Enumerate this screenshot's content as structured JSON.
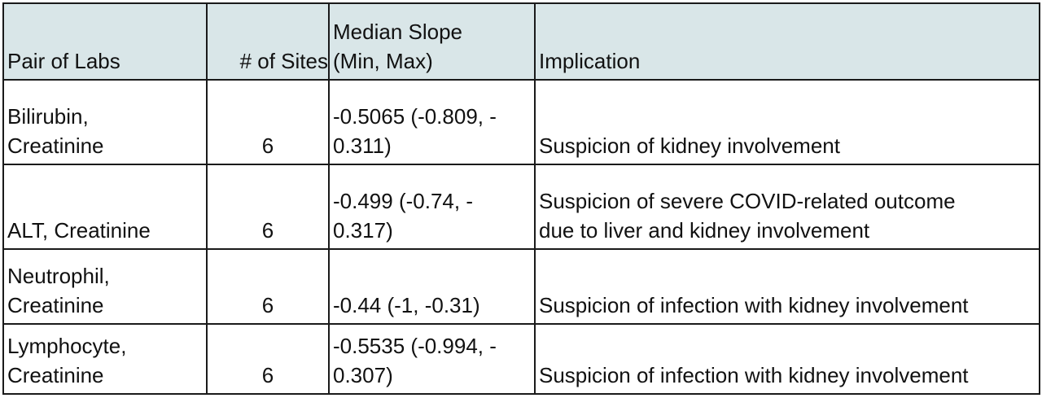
{
  "table": {
    "headers": {
      "pair": "Pair of Labs",
      "sites": "# of Sites",
      "slope": "Median Slope\n(Min, Max)",
      "implication": "Implication"
    },
    "rows": [
      {
        "pair": "Bilirubin,\nCreatinine",
        "sites": "6",
        "slope": "-0.5065 (-0.809, -\n0.311)",
        "implication": "Suspicion of kidney involvement"
      },
      {
        "pair": "ALT, Creatinine",
        "sites": "6",
        "slope": "-0.499 (-0.74, -\n0.317)",
        "implication": "Suspicion of severe COVID-related outcome\ndue to liver and kidney involvement"
      },
      {
        "pair": "Neutrophil,\nCreatinine",
        "sites": "6",
        "slope": "-0.44 (-1, -0.31)",
        "implication": "Suspicion of infection with kidney involvement"
      },
      {
        "pair": "Lymphocyte,\nCreatinine",
        "sites": "6",
        "slope": "-0.5535 (-0.994, -\n0.307)",
        "implication": "Suspicion of infection with kidney involvement"
      }
    ]
  },
  "colors": {
    "header_background": "#d9e6e8",
    "border": "#1a1a1a"
  }
}
